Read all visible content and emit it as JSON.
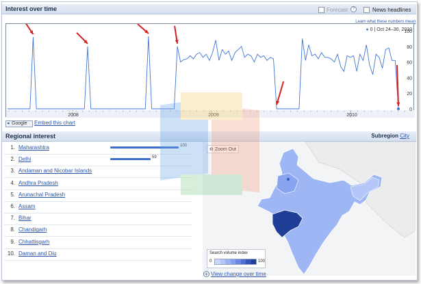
{
  "interest": {
    "title": "Interest over time",
    "forecast_label": "Forecast",
    "news_label": "News headlines",
    "learn_link": "Learn what these numbers mean",
    "legend_series": "0",
    "legend_range": "Oct 24–30, 2010",
    "y_ticks": [
      "100",
      "80",
      "60",
      "40",
      "20",
      "0"
    ],
    "x_ticks": [
      "2008",
      "2009",
      "2010"
    ]
  },
  "chart_data": {
    "type": "line",
    "series": [
      {
        "values": [
          0,
          0,
          0,
          0,
          0,
          0,
          0,
          0,
          92,
          0,
          0,
          0,
          0,
          0,
          0,
          0,
          0,
          0,
          0,
          0,
          0,
          0,
          0,
          0,
          0,
          80,
          0,
          0,
          0,
          0,
          0,
          0,
          0,
          0,
          0,
          0,
          0,
          0,
          0,
          0,
          0,
          0,
          0,
          0,
          93,
          0,
          0,
          0,
          0,
          0,
          0,
          0,
          0,
          80,
          60,
          63,
          64,
          68,
          64,
          70,
          72,
          66,
          70,
          62,
          72,
          88,
          62,
          76,
          70,
          74,
          62,
          72,
          76,
          80,
          66,
          70,
          68,
          60,
          70,
          66,
          68,
          62,
          66,
          64,
          0,
          0,
          0,
          0,
          0,
          0,
          0,
          0,
          90,
          62,
          82,
          68,
          70,
          64,
          72,
          66,
          66,
          64,
          60,
          70,
          54,
          48,
          68,
          66,
          68,
          48,
          70,
          62,
          82,
          56,
          44,
          70,
          66,
          52,
          76,
          78,
          62,
          62,
          0
        ]
      }
    ],
    "ylim": [
      0,
      100
    ],
    "x_ticks": [
      "2008",
      "2009",
      "2010"
    ],
    "grid": false,
    "legend": "top-right"
  },
  "share": {
    "google_button": "Google",
    "embed_link": "Embed this chart"
  },
  "regional": {
    "title": "Regional interest",
    "subregion_label": "Subregion",
    "subregion_value": "City",
    "items": [
      {
        "rank": "1.",
        "name": "Maharashtra",
        "value": 100,
        "value_label": "100"
      },
      {
        "rank": "2.",
        "name": "Delhi",
        "value": 59,
        "value_label": "59"
      },
      {
        "rank": "3.",
        "name": "Andaman and Nicobar Islands"
      },
      {
        "rank": "4.",
        "name": "Andhra Pradesh"
      },
      {
        "rank": "5.",
        "name": "Arunachal Pradesh"
      },
      {
        "rank": "6.",
        "name": "Assam"
      },
      {
        "rank": "7.",
        "name": "Bihar"
      },
      {
        "rank": "8.",
        "name": "Chandigarh"
      },
      {
        "rank": "9.",
        "name": "Chhattisgarh"
      },
      {
        "rank": "10.",
        "name": "Daman and Diu"
      }
    ]
  },
  "map": {
    "zoom_label": "Zoom Out",
    "index_title": "Search volume index",
    "index_min": "0",
    "index_max": "100",
    "ramp_colors": [
      "#c9d6fb",
      "#b4c5f8",
      "#9cb3f3",
      "#839fee",
      "#6a89e3",
      "#4f6fd3",
      "#3456ba",
      "#1f3e98"
    ],
    "view_change_link": "View change over time"
  },
  "colors": {
    "line": "#3f74d6",
    "arrow": "#d42020",
    "header_bg": "#dfe7f4",
    "map_base": "#9fb6f4",
    "map_high": "#1e3f95"
  }
}
